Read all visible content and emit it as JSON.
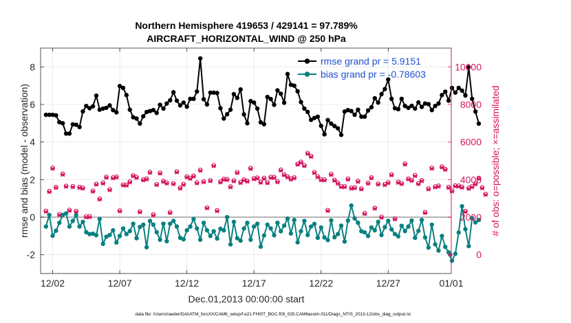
{
  "chart_data": {
    "type": "line",
    "title_line1": "Northern Hemisphere 419653 / 429141 = 97.789%",
    "title_line2": "AIRCRAFT_HORIZONTAL_WIND @ 250 hPa",
    "xlabel": "Dec.01,2013 00:00:00 start",
    "ylabel_left": "rmse and bias (model - observation)",
    "ylabel_right": "# of obs: o=possible; ×=assimilated",
    "footer": "data file: /Users/raeder/DAI/ATM_forcXX/CAM6_setup/f.e21.FHIST_BGC.f09_025.CAM6assim.011/Diags_NTrS_2013-12/obs_diag_output.nc",
    "xlim": [
      0.6,
      31.2
    ],
    "ylim_left": [
      -3,
      9
    ],
    "ylim_right": [
      -1000,
      11000
    ],
    "x_ticks": [
      1.5,
      6.5,
      11.5,
      16.5,
      21.5,
      26.5,
      31.5
    ],
    "x_tick_labels": [
      "12/02",
      "12/07",
      "12/12",
      "12/17",
      "12/22",
      "12/27",
      "01/01"
    ],
    "y_left_ticks": [
      -2,
      0,
      2,
      4,
      6,
      8
    ],
    "y_right_ticks": [
      0,
      2000,
      4000,
      6000,
      8000,
      10000
    ],
    "zero_line": 0,
    "legend": [
      "rmse grand pr = 5.9151",
      "bias grand pr = -0.78603"
    ],
    "colors": {
      "rmse": "#000000",
      "bias": "#0a8080",
      "obs": "#d6145e",
      "zero_line": "#b4b4b4",
      "legend_text": "#1f4fd1"
    },
    "series": [
      {
        "name": "rmse",
        "values": [
          5.45,
          5.45,
          5.45,
          5.42,
          5.06,
          5.0,
          4.45,
          4.45,
          4.94,
          4.92,
          4.8,
          5.63,
          5.92,
          5.8,
          5.9,
          6.47,
          5.72,
          5.78,
          5.82,
          5.95,
          5.7,
          5.58,
          6.98,
          6.88,
          6.5,
          5.72,
          5.32,
          5.25,
          4.98,
          5.37,
          5.6,
          5.65,
          5.7,
          5.55,
          5.98,
          5.78,
          6.05,
          6.22,
          6.65,
          6.2,
          5.95,
          6.1,
          5.88,
          6.3,
          6.3,
          6.69,
          8.45,
          6.28,
          6.0,
          6.63,
          6.63,
          6.61,
          5.8,
          5.25,
          5.48,
          5.72,
          6.55,
          6.35,
          6.8,
          5.47,
          5.0,
          6.18,
          6.1,
          5.78,
          5.05,
          4.95,
          6.4,
          6.29,
          5.98,
          6.75,
          6.57,
          6.09,
          7.62,
          7.05,
          7.0,
          6.7,
          6.13,
          5.78,
          5.6,
          5.18,
          5.28,
          5.35,
          4.86,
          4.41,
          5.17,
          4.98,
          4.85,
          4.73,
          4.38,
          5.62,
          5.7,
          5.65,
          5.45,
          5.72,
          5.35,
          5.35,
          5.68,
          5.85,
          6.33,
          6.1,
          6.55,
          6.82,
          7.33,
          6.3,
          5.8,
          5.75,
          6.3,
          5.92,
          5.82,
          5.93,
          5.78,
          6.11,
          5.87,
          6.05,
          6.02,
          5.7,
          5.92,
          6.05,
          6.5,
          6.68,
          6.2,
          6.88,
          6.63,
          6.88,
          6.74,
          6.48,
          7.98,
          6.3,
          5.62,
          4.98
        ]
      },
      {
        "name": "bias",
        "values": [
          -0.5,
          0.12,
          -0.99,
          -0.72,
          -0.3,
          0.12,
          0.2,
          -0.5,
          -0.2,
          0.1,
          -0.5,
          -0.25,
          -0.8,
          -0.9,
          -0.88,
          -0.96,
          -0.1,
          -1.42,
          -1.04,
          -0.95,
          -0.7,
          -1.35,
          -1.0,
          -0.6,
          -0.9,
          -0.74,
          -0.35,
          -1.12,
          -0.52,
          -0.4,
          -1.6,
          -0.2,
          -0.4,
          -0.8,
          -1.2,
          -0.35,
          -1.28,
          -0.35,
          -0.2,
          -0.5,
          -1.1,
          -1.18,
          -0.7,
          -0.5,
          -0.1,
          -0.6,
          -1.2,
          -0.3,
          -0.7,
          -1.0,
          -0.75,
          -1.14,
          -0.62,
          -0.7,
          0.0,
          -1.45,
          -0.25,
          -1.12,
          -1.25,
          -0.6,
          -0.3,
          -1.2,
          -0.5,
          -0.35,
          -1.57,
          -0.97,
          -0.4,
          -0.6,
          -0.96,
          -0.3,
          -0.75,
          -0.45,
          -0.08,
          -0.87,
          -0.15,
          -1.34,
          -0.75,
          -0.2,
          -0.95,
          -0.5,
          -0.36,
          -1.1,
          -0.55,
          -1.08,
          -1.22,
          -0.17,
          -1.07,
          -0.9,
          -0.45,
          -1.3,
          -0.18,
          0.62,
          -0.07,
          -0.3,
          -0.75,
          -0.81,
          -1.0,
          -0.55,
          -0.7,
          -0.25,
          -0.95,
          -0.53,
          -0.2,
          -0.65,
          -0.9,
          -1.02,
          -0.46,
          -0.74,
          -0.5,
          -0.18,
          -1.1,
          -0.73,
          -0.15,
          -1.08,
          -1.62,
          -0.4,
          -1.45,
          -1.78,
          -1.0,
          -1.58,
          -1.87,
          -2.32,
          -1.95,
          -0.82,
          0.58,
          -0.64,
          -1.54,
          -0.05,
          -0.28,
          -0.15
        ]
      },
      {
        "name": "obs_possible",
        "values": [
          2330,
          3380,
          4620,
          3600,
          2150,
          4300,
          3660,
          2380,
          3640,
          2320,
          3600,
          3560,
          2030,
          2040,
          3400,
          3770,
          2980,
          3830,
          4140,
          3480,
          4110,
          4150,
          2350,
          3730,
          3720,
          3890,
          4220,
          4130,
          2300,
          4000,
          4050,
          4400,
          2140,
          3750,
          4360,
          3920,
          3830,
          2260,
          3800,
          4430,
          3560,
          3760,
          4160,
          4080,
          4200,
          3840,
          4510,
          3900,
          2510,
          3960,
          4760,
          2360,
          3890,
          4030,
          4020,
          3630,
          3950,
          4390,
          3860,
          4000,
          3930,
          4610,
          4060,
          4100,
          3870,
          4080,
          3850,
          4130,
          4130,
          3900,
          4520,
          4270,
          4160,
          4040,
          4110,
          4830,
          4940,
          4760,
          5410,
          5250,
          4390,
          4170,
          4010,
          4000,
          2370,
          4290,
          3980,
          3820,
          3640,
          3640,
          4040,
          3560,
          3580,
          3920,
          3520,
          2210,
          3820,
          4110,
          2490,
          3780,
          2010,
          3750,
          3850,
          4270,
          1920,
          3870,
          3800,
          4840,
          4050,
          3970,
          4230,
          3800,
          3960,
          2260,
          3520,
          4620,
          3630,
          3670,
          4690,
          4560,
          3600,
          3410,
          3680,
          3670,
          3610,
          2320,
          3550,
          3640,
          3790,
          4080,
          3580,
          3230
        ]
      },
      {
        "name": "obs_assimilated",
        "values": [
          2290,
          3340,
          4580,
          3560,
          2110,
          4260,
          3620,
          2340,
          3600,
          2280,
          3560,
          3520,
          1990,
          2000,
          3360,
          3730,
          2940,
          3790,
          4100,
          3440,
          4070,
          4110,
          2310,
          3690,
          3680,
          3850,
          4180,
          4090,
          2260,
          3960,
          4010,
          4360,
          2100,
          3710,
          4320,
          3880,
          3790,
          2220,
          3760,
          4390,
          3520,
          3720,
          4120,
          4040,
          4160,
          3800,
          4470,
          3860,
          2470,
          3920,
          4720,
          2320,
          3850,
          3990,
          3980,
          3590,
          3910,
          4350,
          3820,
          3960,
          3890,
          4570,
          4020,
          4060,
          3830,
          4040,
          3810,
          4090,
          4090,
          3860,
          4480,
          4230,
          4120,
          4000,
          4070,
          4790,
          4900,
          4720,
          5370,
          5210,
          4350,
          4130,
          3970,
          3960,
          2330,
          4250,
          3940,
          3780,
          3600,
          3600,
          4000,
          3520,
          3540,
          3880,
          3480,
          2170,
          3780,
          4070,
          2450,
          3740,
          1970,
          3710,
          3810,
          4230,
          1880,
          3830,
          3760,
          4800,
          4010,
          3930,
          4190,
          3760,
          3920,
          2220,
          3480,
          4580,
          3590,
          3630,
          4650,
          4520,
          3560,
          3370,
          3640,
          3630,
          3570,
          2280,
          3510,
          3600,
          3750,
          4040,
          3540,
          3190
        ]
      },
      {
        "name": "obs_endpoint",
        "x": [
          31.12
        ],
        "values": [
          0
        ]
      }
    ]
  }
}
